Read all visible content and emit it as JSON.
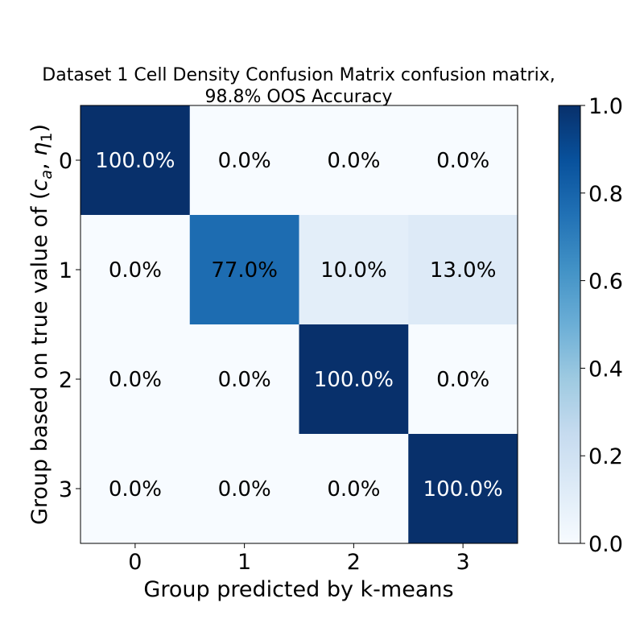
{
  "chart_data": {
    "type": "heatmap",
    "title_line1": "Dataset 1 Cell Density Confusion Matrix confusion matrix,",
    "title_line2": "98.8% OOS Accuracy",
    "xlabel": "Group predicted by k-means",
    "ylabel": "Group based on true value of (c_a, η_1)",
    "ylabel_parts": {
      "prefix": "Group based on true value of (",
      "c": "c",
      "c_sub": "a",
      "sep": ", ",
      "eta": "η",
      "eta_sub": "1",
      "suffix": ")"
    },
    "x_categories": [
      "0",
      "1",
      "2",
      "3"
    ],
    "y_categories": [
      "0",
      "1",
      "2",
      "3"
    ],
    "values": [
      [
        1.0,
        0.0,
        0.0,
        0.0
      ],
      [
        0.0,
        0.77,
        0.1,
        0.13
      ],
      [
        0.0,
        0.0,
        1.0,
        0.0
      ],
      [
        0.0,
        0.0,
        0.0,
        1.0
      ]
    ],
    "labels": [
      [
        "100.0%",
        "0.0%",
        "0.0%",
        "0.0%"
      ],
      [
        "0.0%",
        "77.0%",
        "10.0%",
        "13.0%"
      ],
      [
        "0.0%",
        "0.0%",
        "100.0%",
        "0.0%"
      ],
      [
        "0.0%",
        "0.0%",
        "0.0%",
        "100.0%"
      ]
    ],
    "colorbar": {
      "min": 0.0,
      "max": 1.0,
      "ticks": [
        "0.0",
        "0.2",
        "0.4",
        "0.6",
        "0.8",
        "1.0"
      ],
      "colormap": "Blues"
    },
    "grid": false
  }
}
